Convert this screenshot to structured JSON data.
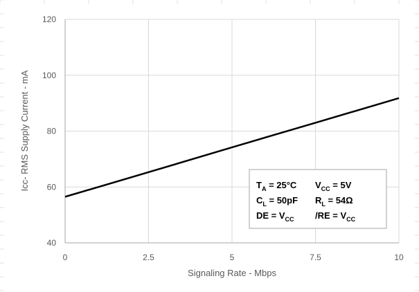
{
  "chart_data": {
    "type": "line",
    "title": "",
    "xlabel": "Signaling Rate - Mbps",
    "ylabel": "Icc- RMS Supply Current - mA",
    "xlim": [
      0,
      10
    ],
    "ylim": [
      40,
      120
    ],
    "xticks": [
      0,
      2.5,
      5,
      7.5,
      10
    ],
    "xtick_labels": [
      "0",
      "2.5",
      "5",
      "7.5",
      "10"
    ],
    "yticks": [
      40,
      60,
      80,
      100,
      120
    ],
    "ytick_labels": [
      "40",
      "60",
      "80",
      "100",
      "120"
    ],
    "grid": true,
    "series": [
      {
        "x": [
          0,
          2.5,
          5,
          7.5,
          10
        ],
        "y": [
          56.5,
          65.3,
          74.2,
          83.0,
          91.8
        ]
      }
    ],
    "colors": {
      "line": "#000000",
      "grid": "#d9d9d9",
      "axis": "#a6a6a6",
      "text": "#595959"
    },
    "conditions": {
      "row1": [
        {
          "main": "T",
          "sub": "A",
          "rest": " = 25°C"
        },
        {
          "main": "V",
          "sub": "CC",
          "rest": " = 5V"
        }
      ],
      "row2": [
        {
          "main": "C",
          "sub": "L",
          "rest": " = 50pF"
        },
        {
          "main": "R",
          "sub": "L",
          "rest": " = 54Ω"
        }
      ],
      "row3": [
        {
          "main": "DE = V",
          "sub": "CC",
          "rest": ""
        },
        {
          "main": "/RE = V",
          "sub": "CC",
          "rest": ""
        }
      ]
    }
  }
}
